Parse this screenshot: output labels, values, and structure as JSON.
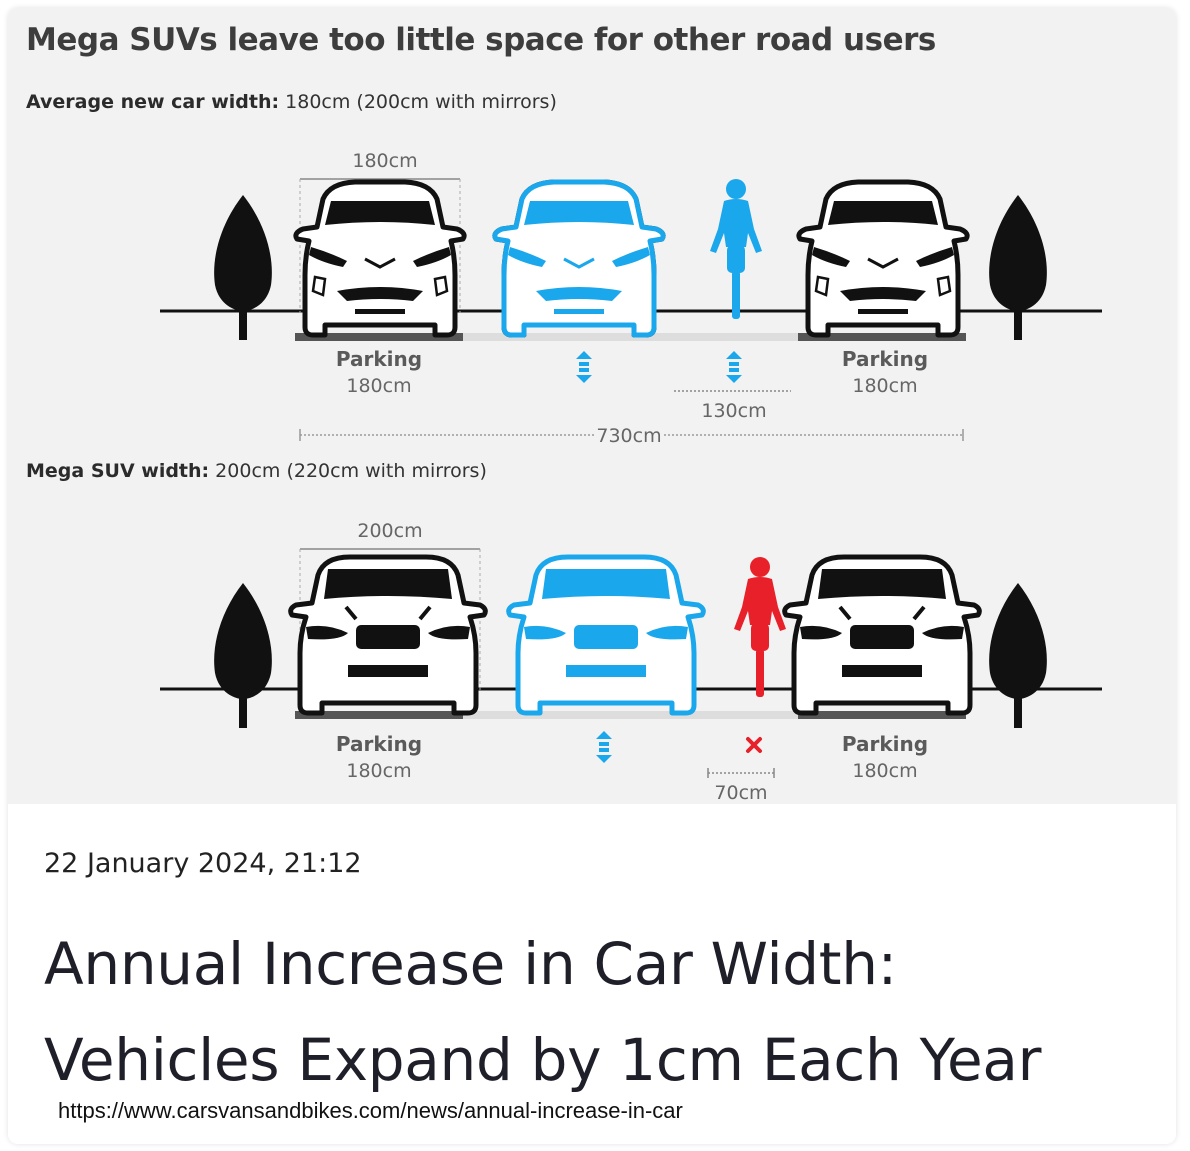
{
  "figure": {
    "title": "Mega SUVs leave too little space for other road users",
    "scenario1": {
      "label_bold": "Average new car width:",
      "label_rest": " 180cm (200cm with mirrors)",
      "car_width": "180cm",
      "parking_left": "Parking",
      "parking_left_width": "180cm",
      "parking_right": "Parking",
      "parking_right_width": "180cm",
      "gap": "130cm",
      "total": "730cm"
    },
    "scenario2": {
      "label_bold": "Mega SUV width:",
      "label_rest": " 200cm (220cm with mirrors)",
      "car_width": "200cm",
      "parking_left": "Parking",
      "parking_left_width": "180cm",
      "parking_right": "Parking",
      "parking_right_width": "180cm",
      "gap": "70cm"
    },
    "colors": {
      "car_outline": "#111111",
      "moving_car": "#1aa7ec",
      "cyclist_ok": "#1aa7ec",
      "cyclist_danger": "#e8202a",
      "tree": "#111111"
    },
    "icons": [
      "tree-icon",
      "car-front-icon",
      "cyclist-icon",
      "up-down-arrows-icon",
      "cross-icon"
    ]
  },
  "article": {
    "date": "22 January 2024, 21:12",
    "headline_line1": "Annual Increase in Car Width:",
    "headline_line2": "Vehicles Expand by 1cm Each Year",
    "url": "https://www.carsvansandbikes.com/news/annual-increase-in-car"
  }
}
